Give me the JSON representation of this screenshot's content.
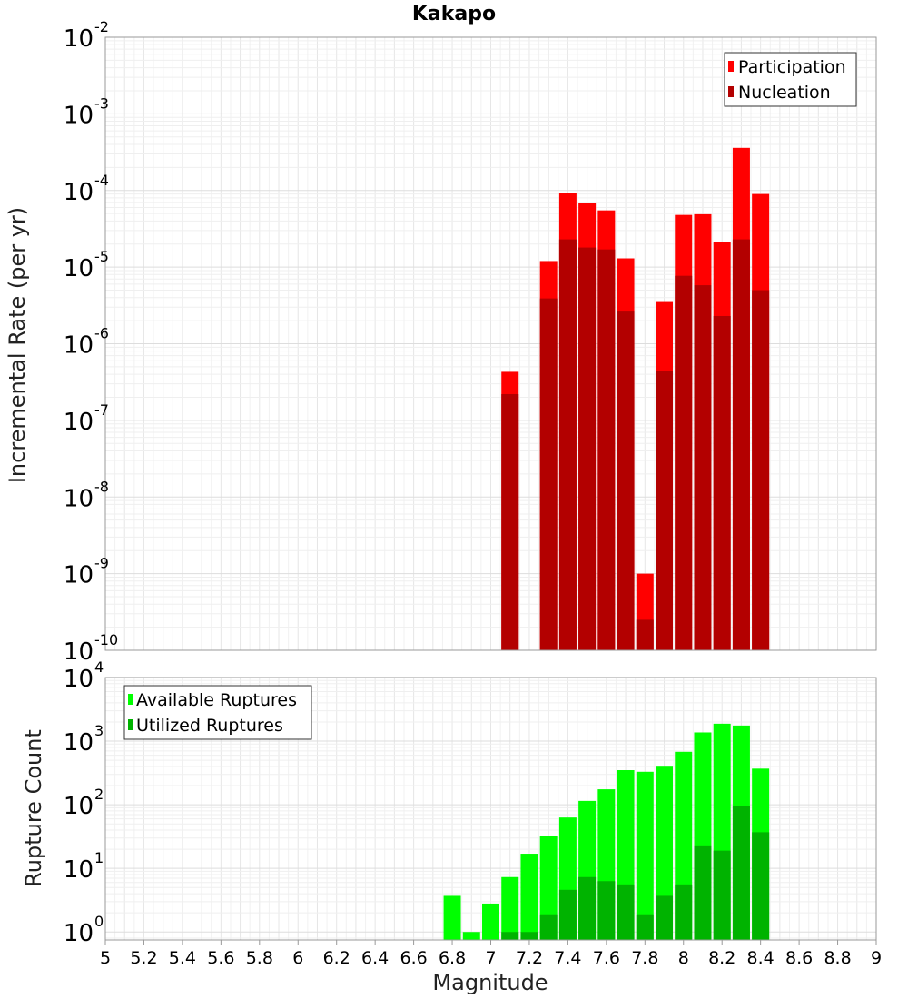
{
  "title": "Kakapo",
  "chart_data": [
    {
      "type": "bar",
      "ylabel": "Incremental Rate (per yr)",
      "y_scale": "log",
      "ylim": [
        1e-10,
        0.01
      ],
      "xlim": [
        5,
        9
      ],
      "grid": true,
      "legend_position": "top-right",
      "y_tick_labels": [
        {
          "base": "10",
          "exp": "-10"
        },
        {
          "base": "10",
          "exp": "-9"
        },
        {
          "base": "10",
          "exp": "-8"
        },
        {
          "base": "10",
          "exp": "-7"
        },
        {
          "base": "10",
          "exp": "-6"
        },
        {
          "base": "10",
          "exp": "-5"
        },
        {
          "base": "10",
          "exp": "-4"
        },
        {
          "base": "10",
          "exp": "-3"
        },
        {
          "base": "10",
          "exp": "-2"
        }
      ],
      "x": [
        7.1,
        7.2,
        7.3,
        7.4,
        7.5,
        7.6,
        7.7,
        7.8,
        7.9,
        8.0,
        8.1,
        8.2,
        8.3,
        8.4
      ],
      "series": [
        {
          "name": "Participation",
          "color": "#ff0000",
          "values": [
            4.3e-07,
            null,
            1.2e-05,
            9.2e-05,
            6.9e-05,
            5.5e-05,
            1.3e-05,
            1e-09,
            3.6e-06,
            4.8e-05,
            4.9e-05,
            2.1e-05,
            0.00036,
            9e-05
          ]
        },
        {
          "name": "Nucleation",
          "color": "#b30000",
          "values": [
            2.2e-07,
            null,
            3.9e-06,
            2.3e-05,
            1.8e-05,
            1.7e-05,
            2.7e-06,
            2.5e-10,
            4.4e-07,
            7.7e-06,
            5.8e-06,
            2.3e-06,
            2.3e-05,
            5e-06
          ]
        }
      ]
    },
    {
      "type": "bar",
      "ylabel": "Rupture Count",
      "xlabel": "Magnitude",
      "y_scale": "log",
      "ylim": [
        0.75,
        10000
      ],
      "xlim": [
        5,
        9
      ],
      "grid": true,
      "legend_position": "top-left",
      "y_tick_labels": [
        {
          "base": "10",
          "exp": "0"
        },
        {
          "base": "10",
          "exp": "1"
        },
        {
          "base": "10",
          "exp": "2"
        },
        {
          "base": "10",
          "exp": "3"
        },
        {
          "base": "10",
          "exp": "4"
        }
      ],
      "x_tick_labels": [
        "5",
        "5.2",
        "5.4",
        "5.6",
        "5.8",
        "6",
        "6.2",
        "6.4",
        "6.6",
        "6.8",
        "7",
        "7.2",
        "7.4",
        "7.6",
        "7.8",
        "8",
        "8.2",
        "8.4",
        "8.6",
        "8.8",
        "9"
      ],
      "x": [
        6.8,
        6.9,
        7.0,
        7.1,
        7.2,
        7.3,
        7.4,
        7.5,
        7.6,
        7.7,
        7.8,
        7.9,
        8.0,
        8.1,
        8.2,
        8.3,
        8.4
      ],
      "series": [
        {
          "name": "Available Ruptures",
          "color": "#00ff00",
          "values": [
            3.7,
            1,
            2.8,
            7.3,
            17,
            32,
            63,
            115,
            175,
            350,
            330,
            410,
            680,
            1370,
            1880,
            1760,
            370
          ]
        },
        {
          "name": "Utilized Ruptures",
          "color": "#00b300",
          "values": [
            null,
            null,
            null,
            1,
            1,
            1.9,
            4.6,
            7.3,
            6.3,
            5.6,
            1.9,
            3.7,
            5.6,
            23,
            19,
            95,
            37
          ]
        }
      ]
    }
  ]
}
